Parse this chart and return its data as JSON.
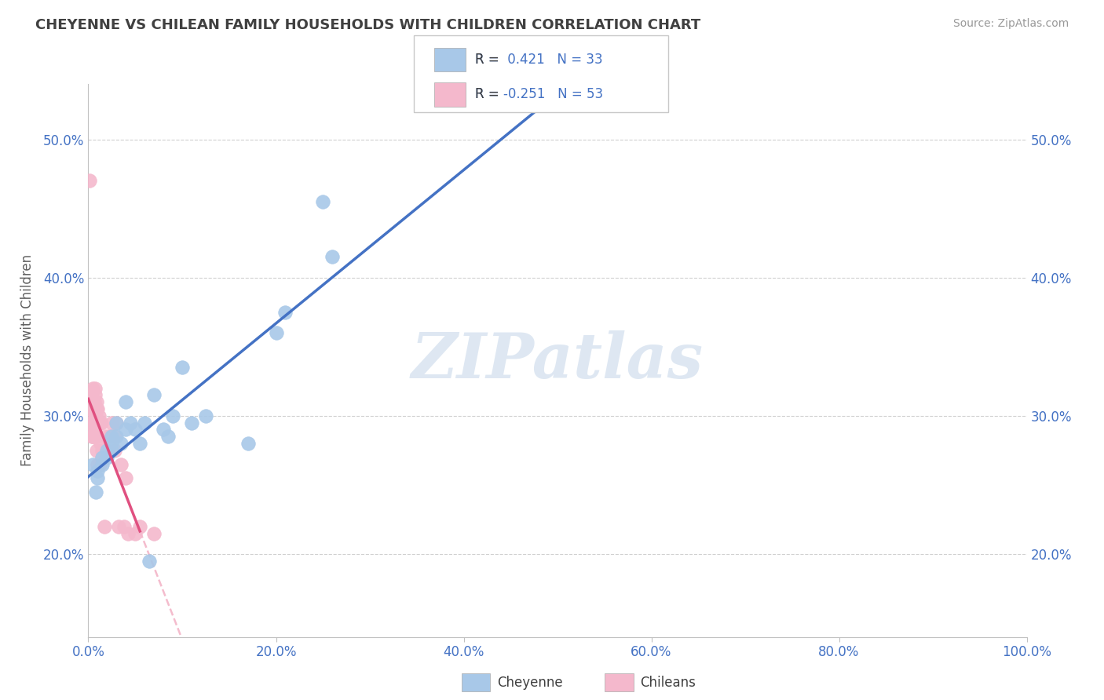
{
  "title": "CHEYENNE VS CHILEAN FAMILY HOUSEHOLDS WITH CHILDREN CORRELATION CHART",
  "source": "Source: ZipAtlas.com",
  "ylabel": "Family Households with Children",
  "watermark": "ZIPatlas",
  "xlim": [
    0.0,
    1.0
  ],
  "ylim": [
    0.14,
    0.54
  ],
  "xtick_labels": [
    "0.0%",
    "20.0%",
    "40.0%",
    "60.0%",
    "80.0%",
    "100.0%"
  ],
  "xtick_vals": [
    0.0,
    0.2,
    0.4,
    0.6,
    0.8,
    1.0
  ],
  "ytick_labels": [
    "20.0%",
    "30.0%",
    "40.0%",
    "50.0%"
  ],
  "ytick_vals": [
    0.2,
    0.3,
    0.4,
    0.5
  ],
  "cheyenne_color": "#a8c8e8",
  "chilean_color": "#f4b8cc",
  "cheyenne_line_color": "#4472c4",
  "chilean_line_color": "#e05080",
  "chilean_dash_color": "#f0a0b8",
  "cheyenne_r": 0.421,
  "cheyenne_n": 33,
  "chilean_r": -0.251,
  "chilean_n": 53,
  "legend_label_cheyenne": "Cheyenne",
  "legend_label_chilean": "Chileans",
  "cheyenne_x": [
    0.005,
    0.008,
    0.01,
    0.01,
    0.015,
    0.015,
    0.02,
    0.02,
    0.025,
    0.025,
    0.025,
    0.03,
    0.03,
    0.035,
    0.04,
    0.04,
    0.045,
    0.05,
    0.055,
    0.06,
    0.065,
    0.07,
    0.08,
    0.085,
    0.09,
    0.1,
    0.11,
    0.125,
    0.17,
    0.2,
    0.21,
    0.25,
    0.26
  ],
  "cheyenne_y": [
    0.265,
    0.245,
    0.255,
    0.26,
    0.265,
    0.27,
    0.275,
    0.27,
    0.28,
    0.285,
    0.275,
    0.285,
    0.295,
    0.28,
    0.29,
    0.31,
    0.295,
    0.29,
    0.28,
    0.295,
    0.195,
    0.315,
    0.29,
    0.285,
    0.3,
    0.335,
    0.295,
    0.3,
    0.28,
    0.36,
    0.375,
    0.455,
    0.415
  ],
  "chilean_x": [
    0.001,
    0.001,
    0.001,
    0.002,
    0.002,
    0.003,
    0.003,
    0.003,
    0.004,
    0.004,
    0.005,
    0.005,
    0.005,
    0.005,
    0.006,
    0.006,
    0.007,
    0.007,
    0.007,
    0.008,
    0.008,
    0.008,
    0.009,
    0.009,
    0.009,
    0.01,
    0.01,
    0.01,
    0.01,
    0.011,
    0.012,
    0.012,
    0.013,
    0.014,
    0.015,
    0.015,
    0.017,
    0.018,
    0.019,
    0.02,
    0.022,
    0.025,
    0.028,
    0.028,
    0.03,
    0.032,
    0.035,
    0.038,
    0.04,
    0.042,
    0.05,
    0.055,
    0.07
  ],
  "chilean_y": [
    0.295,
    0.305,
    0.47,
    0.305,
    0.295,
    0.295,
    0.305,
    0.315,
    0.29,
    0.285,
    0.285,
    0.295,
    0.285,
    0.32,
    0.305,
    0.31,
    0.295,
    0.315,
    0.32,
    0.285,
    0.295,
    0.3,
    0.305,
    0.31,
    0.275,
    0.285,
    0.295,
    0.305,
    0.265,
    0.3,
    0.265,
    0.295,
    0.28,
    0.295,
    0.27,
    0.275,
    0.22,
    0.275,
    0.285,
    0.275,
    0.285,
    0.295,
    0.275,
    0.285,
    0.295,
    0.22,
    0.265,
    0.22,
    0.255,
    0.215,
    0.215,
    0.22,
    0.215
  ],
  "background_color": "#ffffff",
  "grid_color": "#d0d0d0",
  "title_color": "#404040",
  "axis_label_color": "#606060",
  "tick_label_color": "#4472c4",
  "stat_label_color": "#404040",
  "stat_value_color": "#4472c4",
  "legend_box_color": "#e8e8e8"
}
